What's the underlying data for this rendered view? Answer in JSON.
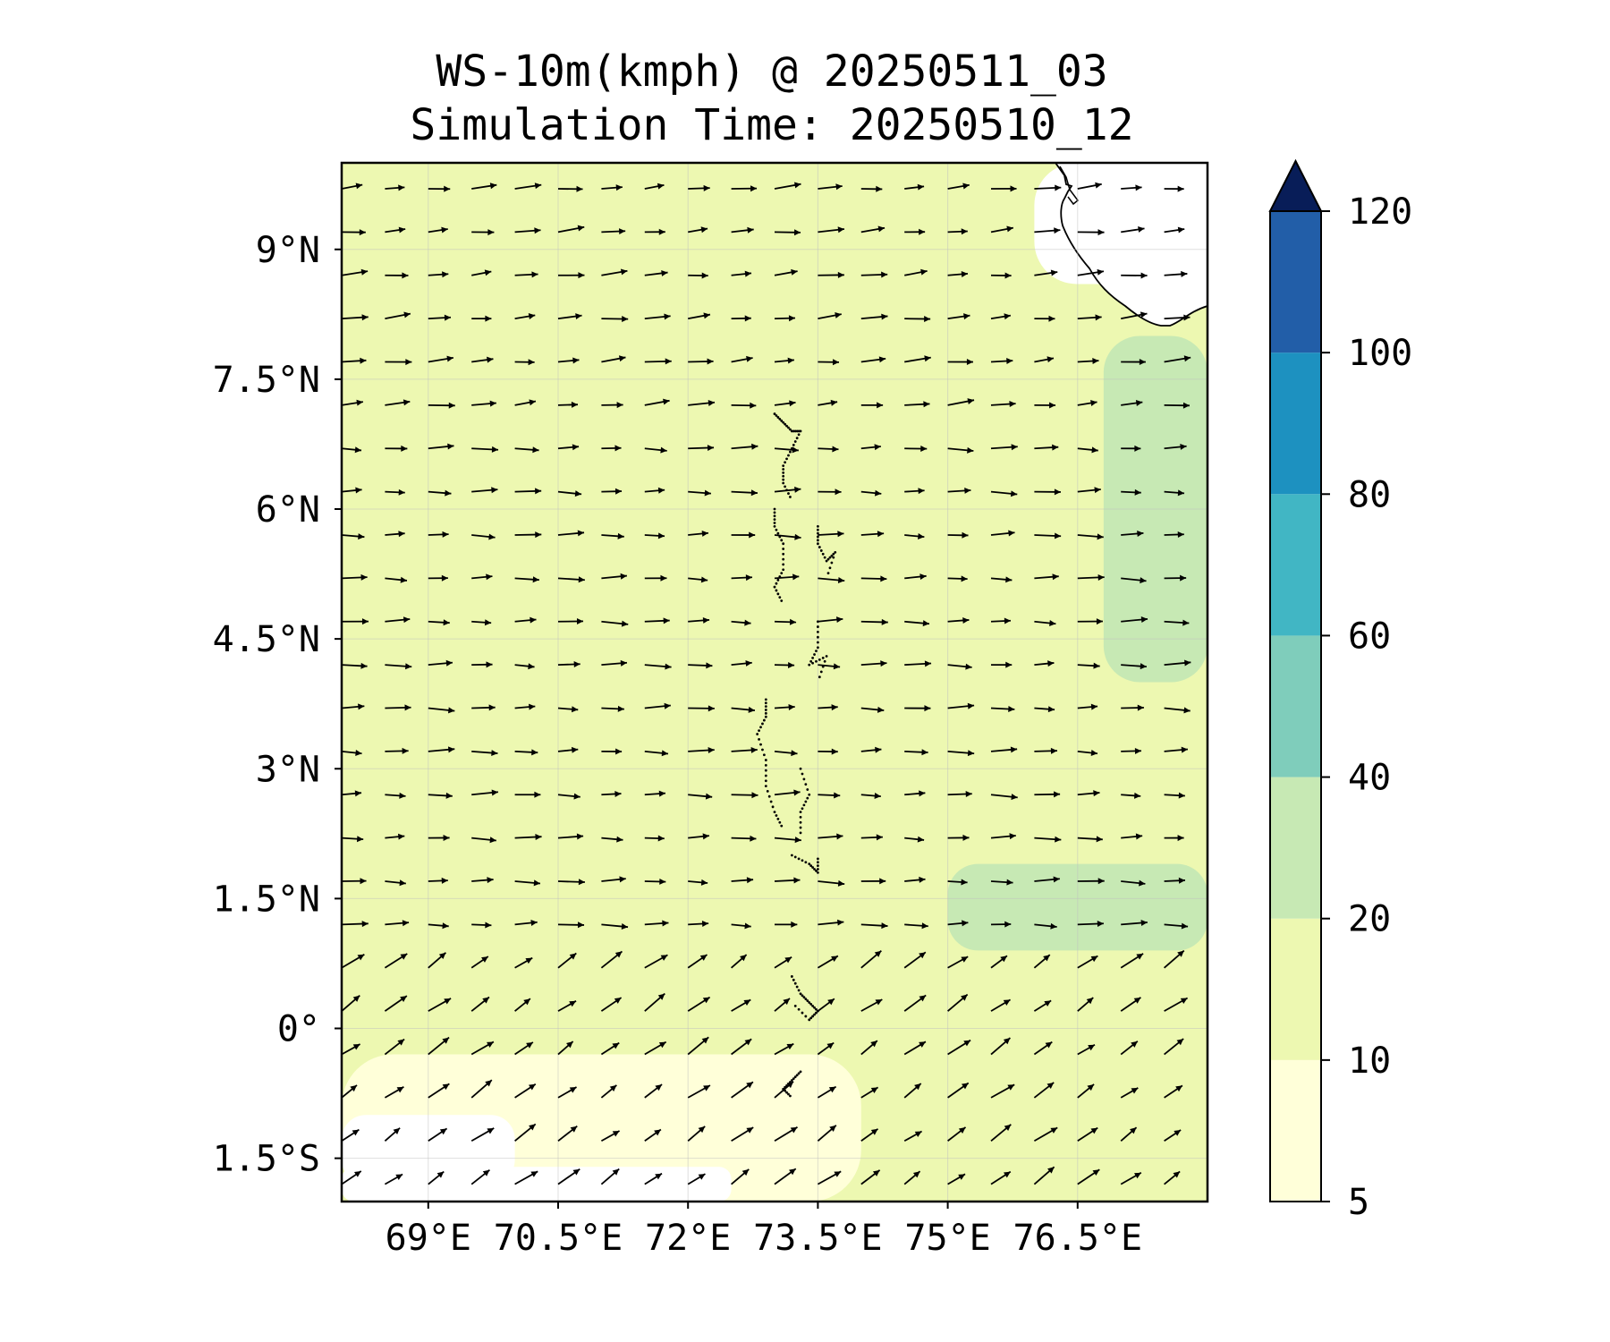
{
  "title": {
    "line1": "WS-10m(kmph) @ 20250511_03",
    "line2": "Simulation Time: 20250510_12"
  },
  "map": {
    "lon_range": [
      68.0,
      78.0
    ],
    "lat_range": [
      -2.0,
      10.0
    ],
    "lon_ticks": [
      {
        "value": 69.0,
        "label": "69°E"
      },
      {
        "value": 70.5,
        "label": "70.5°E"
      },
      {
        "value": 72.0,
        "label": "72°E"
      },
      {
        "value": 73.5,
        "label": "73.5°E"
      },
      {
        "value": 75.0,
        "label": "75°E"
      },
      {
        "value": 76.5,
        "label": "76.5°E"
      }
    ],
    "lat_ticks": [
      {
        "value": 9.0,
        "label": "9°N"
      },
      {
        "value": 7.5,
        "label": "7.5°N"
      },
      {
        "value": 6.0,
        "label": "6°N"
      },
      {
        "value": 4.5,
        "label": "4.5°N"
      },
      {
        "value": 3.0,
        "label": "3°N"
      },
      {
        "value": 1.5,
        "label": "1.5°N"
      },
      {
        "value": 0.0,
        "label": "0°"
      },
      {
        "value": -1.5,
        "label": "1.5°S"
      }
    ],
    "gridlines": true,
    "field": "10 m wind speed (kmph)",
    "dominant_bin": "10-20",
    "zones": [
      {
        "bin": "20-40",
        "lon": [
          76.8,
          78.0
        ],
        "lat": [
          4.0,
          8.0
        ]
      },
      {
        "bin": "20-40",
        "lon": [
          75.0,
          78.0
        ],
        "lat": [
          0.9,
          1.9
        ]
      },
      {
        "bin": "5-10",
        "lon": [
          68.0,
          74.0
        ],
        "lat": [
          -2.0,
          -0.3
        ]
      },
      {
        "bin": "<5",
        "lon": [
          68.0,
          70.0
        ],
        "lat": [
          -1.8,
          -1.0
        ]
      },
      {
        "bin": "<5",
        "lon": [
          68.0,
          72.5
        ],
        "lat": [
          -2.0,
          -1.6
        ]
      },
      {
        "bin": "<5",
        "lon": [
          76.0,
          77.5
        ],
        "lat": [
          8.6,
          10.0
        ]
      }
    ]
  },
  "wind": {
    "lon_step": 0.5,
    "lat_step": 0.5,
    "regimes": [
      {
        "lat_range": [
          7.0,
          10.0
        ],
        "direction_deg": 5,
        "note": "westerly, slightly northward"
      },
      {
        "lat_range": [
          1.0,
          7.0
        ],
        "direction_deg": 0,
        "note": "westerly"
      },
      {
        "lat_range": [
          -2.0,
          1.0
        ],
        "direction_deg": 35,
        "note": "southwesterly"
      }
    ]
  },
  "colorbar": {
    "levels": [
      5,
      10,
      20,
      40,
      60,
      80,
      100,
      120
    ],
    "labels": [
      "5",
      "10",
      "20",
      "40",
      "60",
      "80",
      "100",
      "120"
    ],
    "colors": [
      "#ffffd9",
      "#edf8b1",
      "#c7e9b4",
      "#7fcdbb",
      "#41b6c4",
      "#1d91c0",
      "#225ea8",
      "#0c2c84"
    ],
    "extend": "max",
    "extend_color": "#081d58"
  },
  "colors": {
    "land": "#ffffff",
    "coastline": "#000000",
    "arrow": "#000000"
  }
}
